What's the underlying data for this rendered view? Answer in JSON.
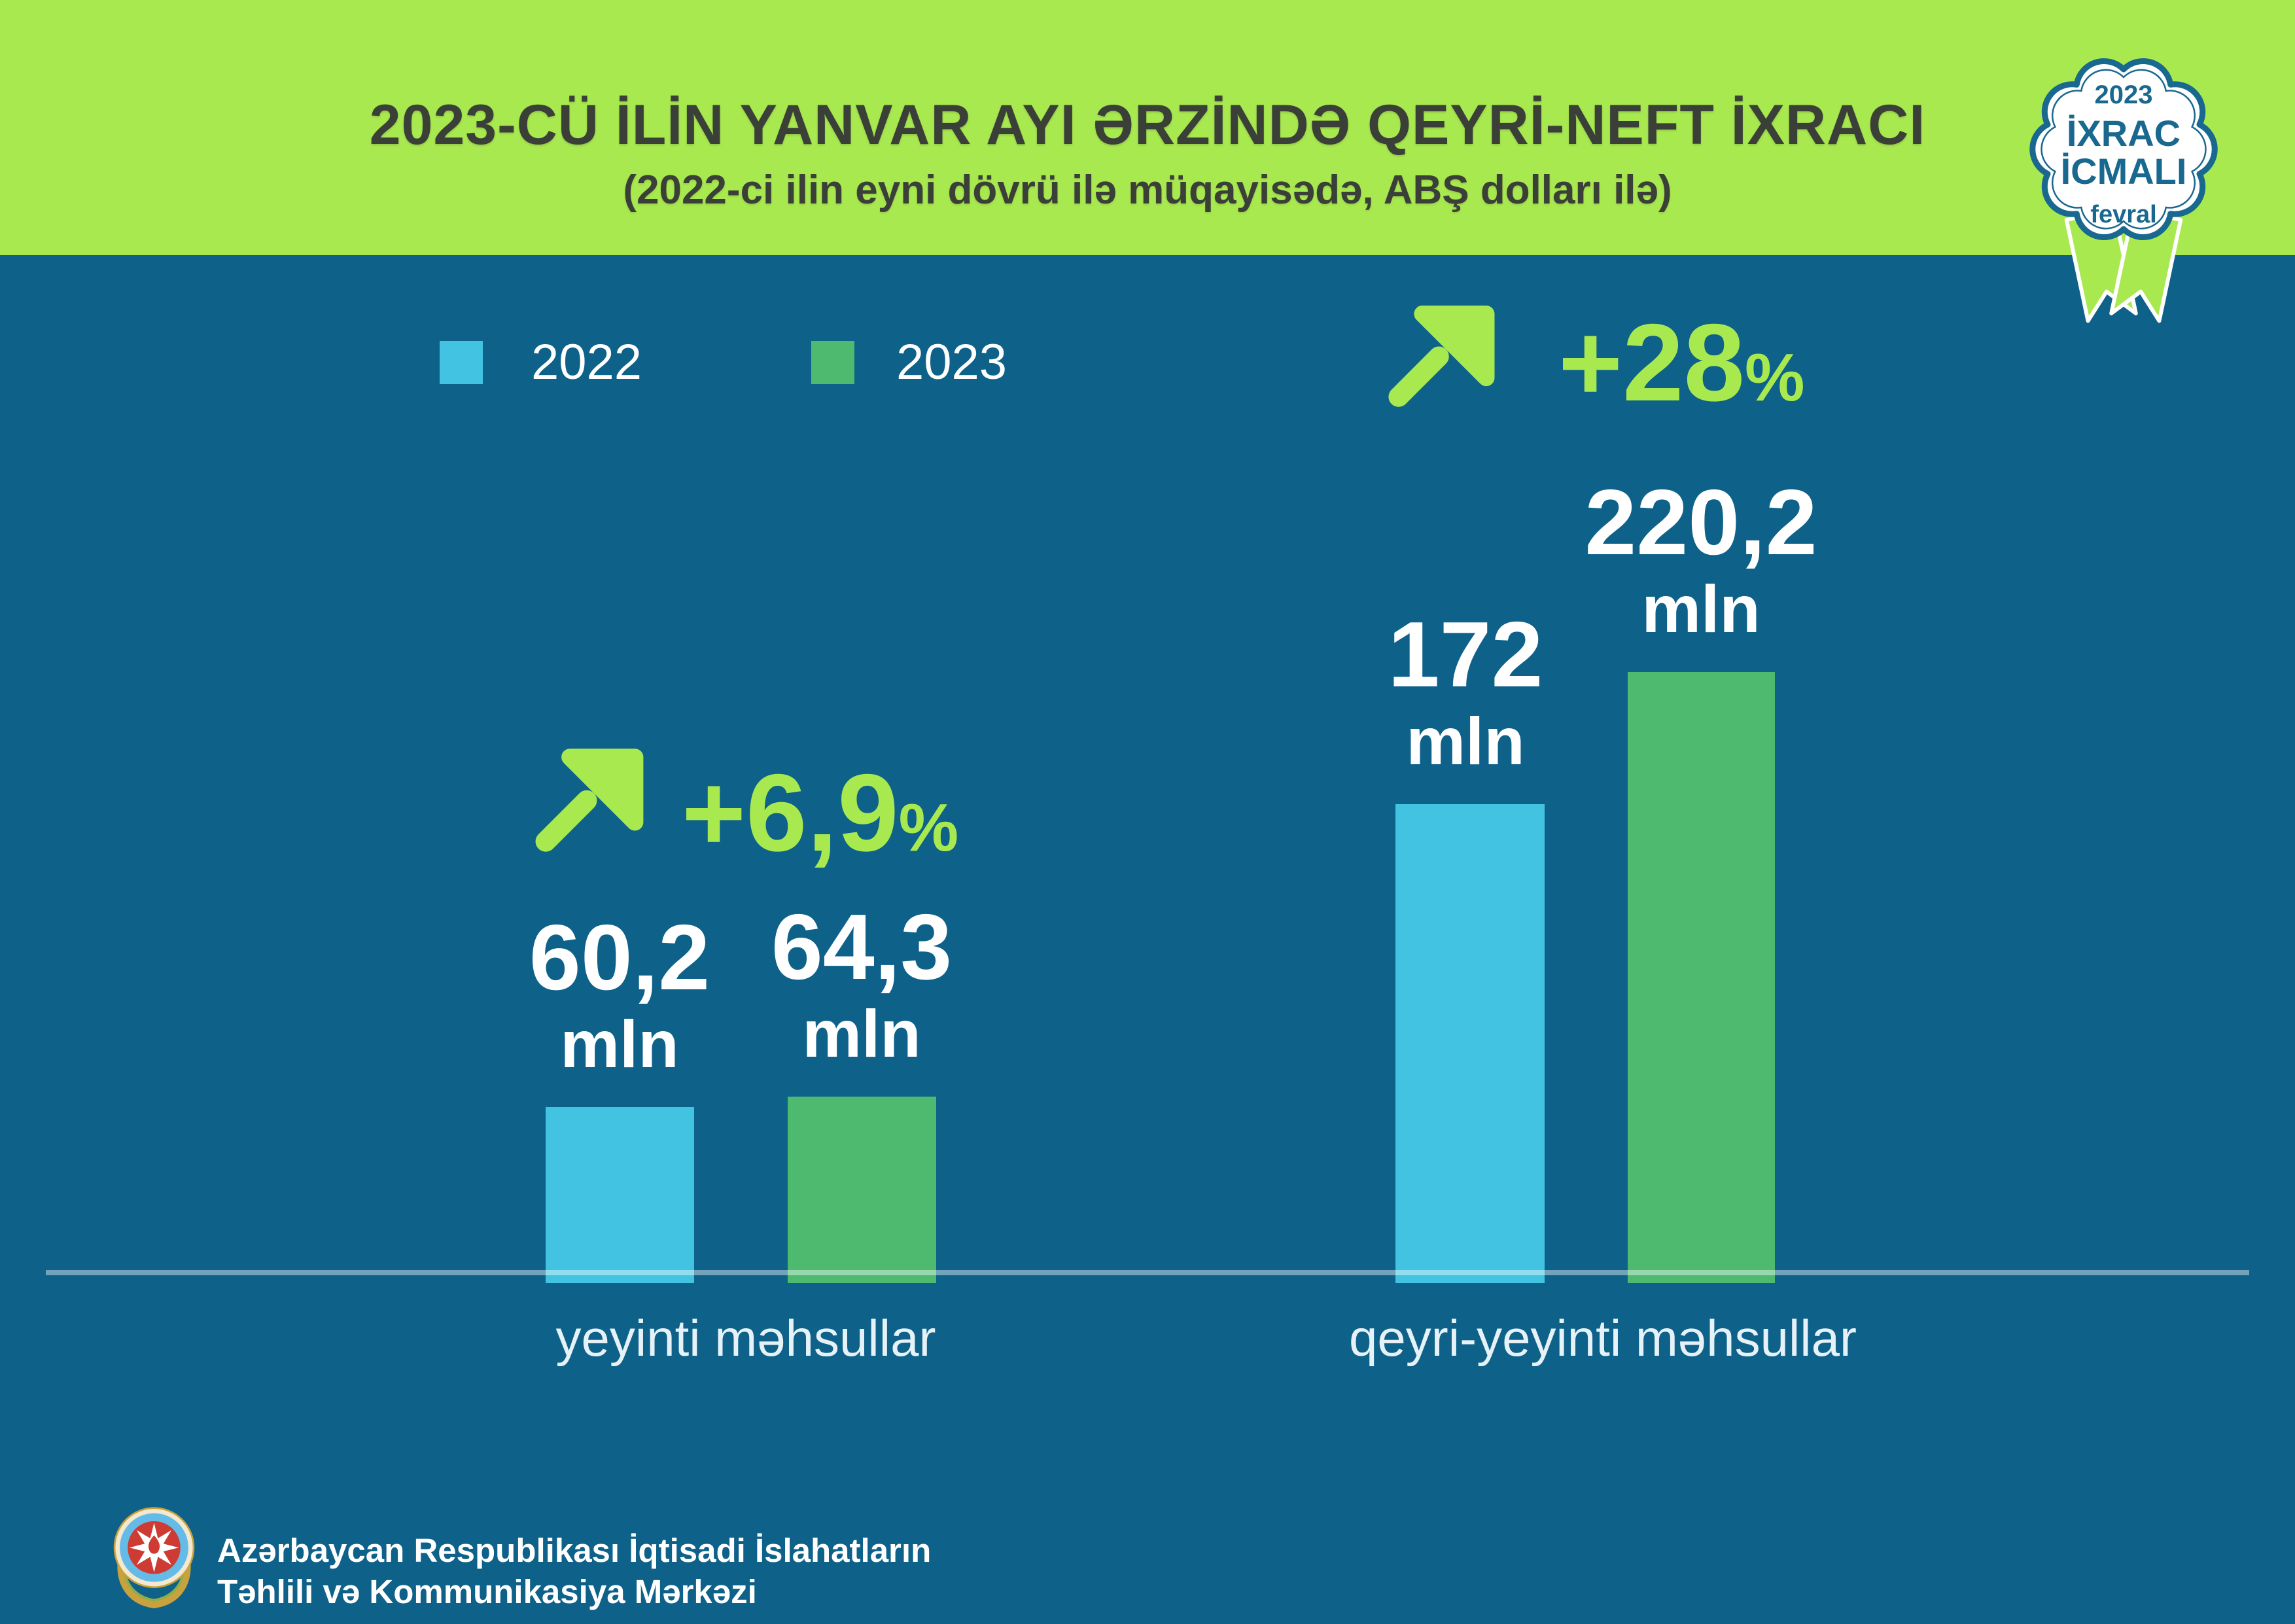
{
  "page": {
    "background": "#0E6189",
    "accent_green": "#A9E950"
  },
  "header": {
    "title": "2023-CÜ İLİN YANVAR AYI ƏRZİNDƏ QEYRİ-NEFT İXRACI",
    "subtitle": "(2022-ci ilin eyni dövrü ilə müqayisədə, ABŞ dolları ilə)",
    "bg": "#A9E950",
    "text_color": "#3A4038"
  },
  "badge": {
    "year": "2023",
    "title_line1": "İXRAC",
    "title_line2": "İCMALI",
    "month": "fevral",
    "text_color": "#19688F",
    "ribbon_color": "#A9E950"
  },
  "legend": {
    "items": [
      {
        "label": "2022",
        "color": "#42C3E2"
      },
      {
        "label": "2023",
        "color": "#4DBA6F"
      }
    ]
  },
  "groups": [
    {
      "label": "yeyinti məhsullar",
      "change": {
        "value": "+6,9",
        "suffix": "%"
      },
      "bars": [
        {
          "series": "2022",
          "value": "60,2",
          "unit": "mln"
        },
        {
          "series": "2023",
          "value": "64,3",
          "unit": "mln"
        }
      ]
    },
    {
      "label": "qeyri-yeyinti məhsullar",
      "change": {
        "value": "+28",
        "suffix": "%"
      },
      "bars": [
        {
          "series": "2022",
          "value": "172",
          "unit": "mln"
        },
        {
          "series": "2023",
          "value": "220,2",
          "unit": "mln"
        }
      ]
    }
  ],
  "footer": {
    "org_line1": "Azərbaycan Respublikası İqtisadi İslahatların",
    "org_line2": "Təhlili və Kommunikasiya Mərkəzi"
  },
  "chart_data": {
    "type": "bar",
    "title": "2023-cü ilin yanvar ayı ərzində qeyri-neft ixracı",
    "subtitle": "2022-ci ilin eyni dövrü ilə müqayisədə, ABŞ dolları ilə",
    "categories": [
      "yeyinti məhsullar",
      "qeyri-yeyinti məhsullar"
    ],
    "series": [
      {
        "name": "2022",
        "color": "#42C3E2",
        "values": [
          60.2,
          172
        ]
      },
      {
        "name": "2023",
        "color": "#4DBA6F",
        "values": [
          64.3,
          220.2
        ]
      }
    ],
    "unit": "mln ABŞ dolları",
    "change_pct": [
      6.9,
      28
    ],
    "value_labels": [
      [
        "60,2 mln",
        "64,3 mln"
      ],
      [
        "172 mln",
        "220,2 mln"
      ]
    ],
    "ylim": [
      0,
      240
    ],
    "grid": false,
    "legend_position": "top-left",
    "baseline_axis": true
  }
}
